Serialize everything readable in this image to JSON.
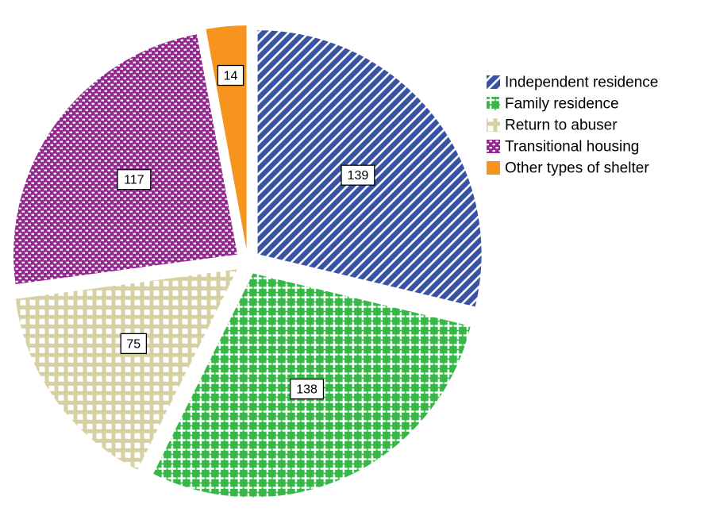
{
  "chart_data": {
    "type": "pie",
    "title": "",
    "total": 483,
    "start_angle_deg": 0,
    "direction": "clockwise",
    "legend_position": "top-right",
    "value_label_style": "boxed-white-black-border",
    "slices": [
      {
        "label": "Independent residence",
        "value": 139,
        "color": "#3953a4",
        "pattern": "diagonal-stripes",
        "pattern_foreground": "#ffffff"
      },
      {
        "label": "Family residence",
        "value": 138,
        "color": "#39b54a",
        "pattern": "plus-cross",
        "pattern_foreground": "#ffffff"
      },
      {
        "label": "Return to abuser",
        "value": 75,
        "color": "#d6d0a2",
        "pattern": "squares-grid",
        "pattern_foreground": "#ffffff"
      },
      {
        "label": "Transitional housing",
        "value": 117,
        "color": "#92278f",
        "pattern": "dashes",
        "pattern_foreground": "#ffffff"
      },
      {
        "label": "Other types of shelter",
        "value": 14,
        "color": "#f7941e",
        "pattern": "solid",
        "pattern_foreground": "#f7941e"
      }
    ]
  }
}
